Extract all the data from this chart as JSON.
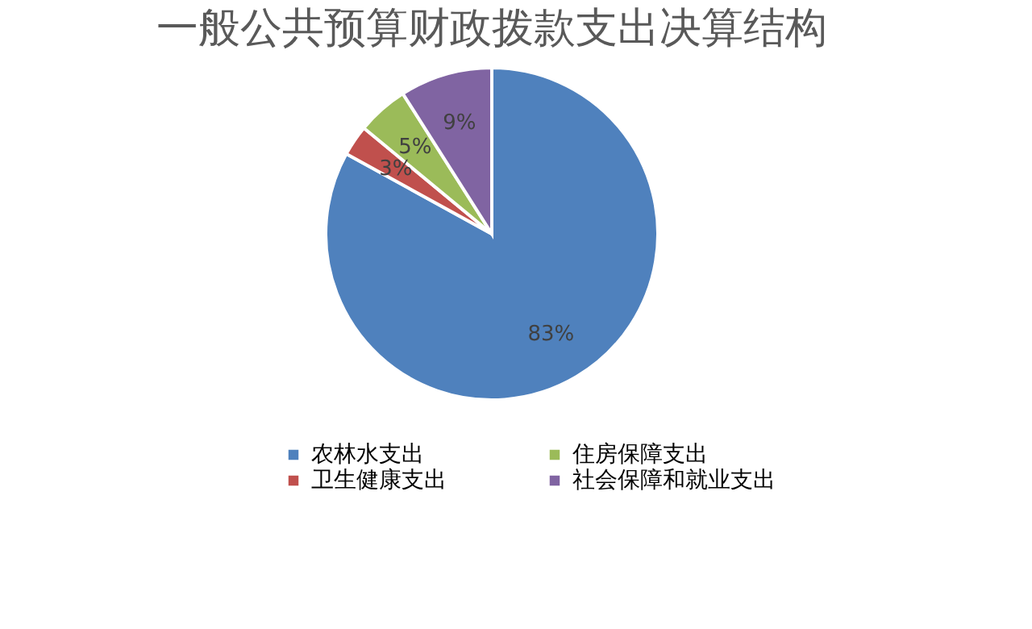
{
  "chart_data": {
    "type": "pie",
    "title": "一般公共预算财政拨款支出决算结构",
    "categories": [
      "农林水支出",
      "卫生健康支出",
      "住房保障支出",
      "社会保障和就业支出"
    ],
    "values": [
      83,
      3,
      5,
      9
    ],
    "colors": [
      "#4f81bd",
      "#c0504d",
      "#9bbb59",
      "#8064a2"
    ],
    "value_labels": [
      "83%",
      "3%",
      "5%",
      "9%"
    ],
    "legend": "bottom"
  }
}
